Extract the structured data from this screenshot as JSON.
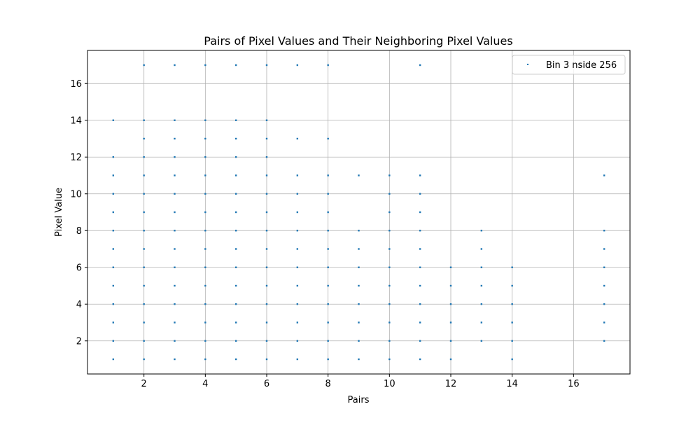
{
  "chart_data": {
    "type": "scatter",
    "title": "Pairs of Pixel Values and Their Neighboring Pixel Values",
    "xlabel": "Pairs",
    "ylabel": "Pixel Value",
    "xlim": [
      0.16,
      17.84
    ],
    "ylim": [
      0.2,
      17.8
    ],
    "xticks": [
      2,
      4,
      6,
      8,
      10,
      12,
      14,
      16
    ],
    "yticks": [
      2,
      4,
      6,
      8,
      10,
      12,
      14,
      16
    ],
    "grid": true,
    "legend_position": "upper right",
    "marker_color": "#1f77b4",
    "series": [
      {
        "name": "Bin 3 nside 256",
        "points": [
          [
            1,
            1
          ],
          [
            1,
            2
          ],
          [
            1,
            3
          ],
          [
            1,
            4
          ],
          [
            1,
            5
          ],
          [
            1,
            6
          ],
          [
            1,
            7
          ],
          [
            1,
            8
          ],
          [
            1,
            9
          ],
          [
            1,
            10
          ],
          [
            1,
            11
          ],
          [
            1,
            12
          ],
          [
            1,
            14
          ],
          [
            2,
            1
          ],
          [
            2,
            2
          ],
          [
            2,
            3
          ],
          [
            2,
            4
          ],
          [
            2,
            5
          ],
          [
            2,
            6
          ],
          [
            2,
            7
          ],
          [
            2,
            8
          ],
          [
            2,
            9
          ],
          [
            2,
            10
          ],
          [
            2,
            11
          ],
          [
            2,
            12
          ],
          [
            2,
            13
          ],
          [
            2,
            14
          ],
          [
            2,
            17
          ],
          [
            3,
            1
          ],
          [
            3,
            2
          ],
          [
            3,
            3
          ],
          [
            3,
            4
          ],
          [
            3,
            5
          ],
          [
            3,
            6
          ],
          [
            3,
            7
          ],
          [
            3,
            8
          ],
          [
            3,
            9
          ],
          [
            3,
            10
          ],
          [
            3,
            11
          ],
          [
            3,
            12
          ],
          [
            3,
            13
          ],
          [
            3,
            14
          ],
          [
            3,
            17
          ],
          [
            4,
            1
          ],
          [
            4,
            2
          ],
          [
            4,
            3
          ],
          [
            4,
            4
          ],
          [
            4,
            5
          ],
          [
            4,
            6
          ],
          [
            4,
            7
          ],
          [
            4,
            8
          ],
          [
            4,
            9
          ],
          [
            4,
            10
          ],
          [
            4,
            11
          ],
          [
            4,
            12
          ],
          [
            4,
            13
          ],
          [
            4,
            14
          ],
          [
            4,
            17
          ],
          [
            5,
            1
          ],
          [
            5,
            2
          ],
          [
            5,
            3
          ],
          [
            5,
            4
          ],
          [
            5,
            5
          ],
          [
            5,
            6
          ],
          [
            5,
            7
          ],
          [
            5,
            8
          ],
          [
            5,
            9
          ],
          [
            5,
            10
          ],
          [
            5,
            11
          ],
          [
            5,
            12
          ],
          [
            5,
            13
          ],
          [
            5,
            14
          ],
          [
            5,
            17
          ],
          [
            6,
            1
          ],
          [
            6,
            2
          ],
          [
            6,
            3
          ],
          [
            6,
            4
          ],
          [
            6,
            5
          ],
          [
            6,
            6
          ],
          [
            6,
            7
          ],
          [
            6,
            8
          ],
          [
            6,
            9
          ],
          [
            6,
            10
          ],
          [
            6,
            11
          ],
          [
            6,
            12
          ],
          [
            6,
            13
          ],
          [
            6,
            14
          ],
          [
            6,
            17
          ],
          [
            7,
            1
          ],
          [
            7,
            2
          ],
          [
            7,
            3
          ],
          [
            7,
            4
          ],
          [
            7,
            5
          ],
          [
            7,
            6
          ],
          [
            7,
            7
          ],
          [
            7,
            8
          ],
          [
            7,
            9
          ],
          [
            7,
            10
          ],
          [
            7,
            11
          ],
          [
            7,
            13
          ],
          [
            7,
            17
          ],
          [
            8,
            1
          ],
          [
            8,
            2
          ],
          [
            8,
            3
          ],
          [
            8,
            4
          ],
          [
            8,
            5
          ],
          [
            8,
            6
          ],
          [
            8,
            7
          ],
          [
            8,
            8
          ],
          [
            8,
            9
          ],
          [
            8,
            10
          ],
          [
            8,
            11
          ],
          [
            8,
            13
          ],
          [
            8,
            17
          ],
          [
            9,
            1
          ],
          [
            9,
            2
          ],
          [
            9,
            3
          ],
          [
            9,
            4
          ],
          [
            9,
            5
          ],
          [
            9,
            6
          ],
          [
            9,
            7
          ],
          [
            9,
            8
          ],
          [
            9,
            11
          ],
          [
            10,
            1
          ],
          [
            10,
            2
          ],
          [
            10,
            3
          ],
          [
            10,
            4
          ],
          [
            10,
            5
          ],
          [
            10,
            6
          ],
          [
            10,
            7
          ],
          [
            10,
            8
          ],
          [
            10,
            9
          ],
          [
            10,
            10
          ],
          [
            10,
            11
          ],
          [
            11,
            1
          ],
          [
            11,
            2
          ],
          [
            11,
            3
          ],
          [
            11,
            4
          ],
          [
            11,
            5
          ],
          [
            11,
            6
          ],
          [
            11,
            7
          ],
          [
            11,
            8
          ],
          [
            11,
            9
          ],
          [
            11,
            10
          ],
          [
            11,
            11
          ],
          [
            11,
            17
          ],
          [
            12,
            1
          ],
          [
            12,
            2
          ],
          [
            12,
            3
          ],
          [
            12,
            4
          ],
          [
            12,
            5
          ],
          [
            12,
            6
          ],
          [
            13,
            2
          ],
          [
            13,
            3
          ],
          [
            13,
            4
          ],
          [
            13,
            5
          ],
          [
            13,
            6
          ],
          [
            13,
            7
          ],
          [
            13,
            8
          ],
          [
            14,
            1
          ],
          [
            14,
            2
          ],
          [
            14,
            3
          ],
          [
            14,
            4
          ],
          [
            14,
            5
          ],
          [
            14,
            6
          ],
          [
            17,
            2
          ],
          [
            17,
            3
          ],
          [
            17,
            4
          ],
          [
            17,
            5
          ],
          [
            17,
            6
          ],
          [
            17,
            7
          ],
          [
            17,
            8
          ],
          [
            17,
            11
          ]
        ]
      }
    ]
  }
}
